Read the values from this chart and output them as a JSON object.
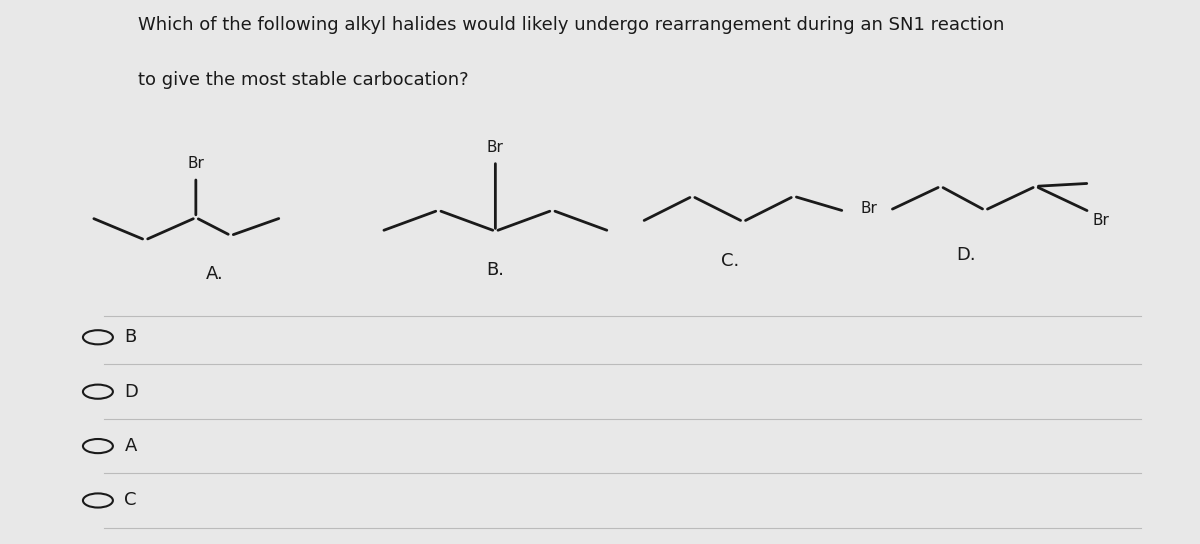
{
  "title_line1": "Which of the following alkyl halides would likely undergo rearrangement during an SN1 reaction",
  "title_line2": "to give the most stable carbocation?",
  "background_color": "#e8e8e8",
  "text_color": "#1a1a1a",
  "title_fontsize": 13,
  "label_fontsize": 13,
  "answer_fontsize": 13,
  "answers": [
    "B",
    "D",
    "A",
    "C"
  ],
  "molecule_labels": [
    "A.",
    "B.",
    "C.",
    "D."
  ]
}
